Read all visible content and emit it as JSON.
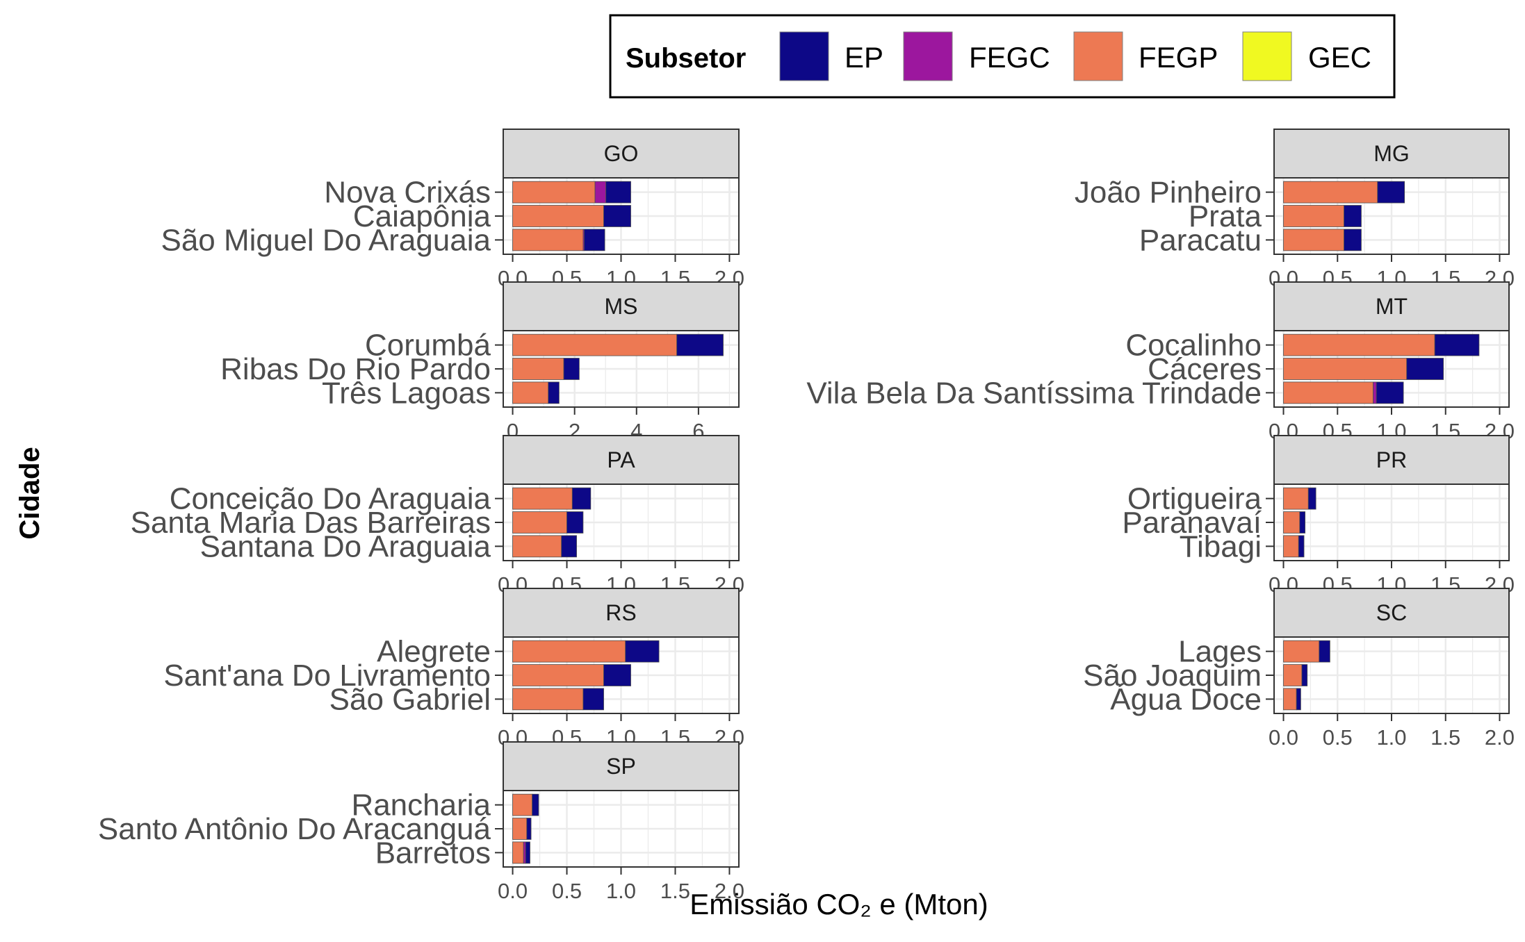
{
  "chart_data": {
    "type": "bar",
    "orientation": "horizontal",
    "stacked": true,
    "xlabel": "Emissião CO₂ e (Mton)",
    "ylabel": "Cidade",
    "legend": {
      "title": "Subsetor",
      "position": "top",
      "entries": [
        {
          "name": "EP",
          "color": "#0d0887"
        },
        {
          "name": "FEGC",
          "color": "#9c179e"
        },
        {
          "name": "FEGP",
          "color": "#ed7953"
        },
        {
          "name": "GEC",
          "color": "#f0f921"
        }
      ]
    },
    "grid": true,
    "facets": [
      {
        "label": "GO",
        "xlim": [
          0,
          2.0
        ],
        "ticks": [
          0,
          0.5,
          1,
          1.5,
          2
        ],
        "tick_labels": [
          "0.0",
          "0.5",
          "1.0",
          "1.5",
          "2.0"
        ],
        "categories": [
          "Nova Crixás",
          "Caiapônia",
          "São Miguel Do Araguaia"
        ],
        "series": [
          {
            "name": "FEGP",
            "values": [
              0.76,
              0.84,
              0.65
            ]
          },
          {
            "name": "FEGC",
            "values": [
              0.1,
              0.0,
              0.01
            ]
          },
          {
            "name": "EP",
            "values": [
              0.23,
              0.25,
              0.19
            ]
          },
          {
            "name": "GEC",
            "values": [
              0,
              0,
              0
            ]
          }
        ]
      },
      {
        "label": "MG",
        "xlim": [
          0,
          2.0
        ],
        "ticks": [
          0,
          0.5,
          1,
          1.5,
          2
        ],
        "tick_labels": [
          "0.0",
          "0.5",
          "1.0",
          "1.5",
          "2.0"
        ],
        "categories": [
          "João Pinheiro",
          "Prata",
          "Paracatu"
        ],
        "series": [
          {
            "name": "FEGP",
            "values": [
              0.87,
              0.56,
              0.56
            ]
          },
          {
            "name": "FEGC",
            "values": [
              0,
              0,
              0
            ]
          },
          {
            "name": "EP",
            "values": [
              0.25,
              0.16,
              0.16
            ]
          },
          {
            "name": "GEC",
            "values": [
              0,
              0,
              0
            ]
          }
        ]
      },
      {
        "label": "MS",
        "xlim": [
          0,
          7
        ],
        "ticks": [
          0,
          2,
          4,
          6
        ],
        "tick_labels": [
          "0",
          "2",
          "4",
          "6"
        ],
        "categories": [
          "Corumbá",
          "Ribas Do Rio Pardo",
          "Três Lagoas"
        ],
        "series": [
          {
            "name": "FEGP",
            "values": [
              5.3,
              1.65,
              1.15
            ]
          },
          {
            "name": "FEGC",
            "values": [
              0,
              0,
              0
            ]
          },
          {
            "name": "EP",
            "values": [
              1.5,
              0.5,
              0.35
            ]
          },
          {
            "name": "GEC",
            "values": [
              0,
              0,
              0
            ]
          }
        ]
      },
      {
        "label": "MT",
        "xlim": [
          0,
          2.0
        ],
        "ticks": [
          0,
          0.5,
          1,
          1.5,
          2
        ],
        "tick_labels": [
          "0.0",
          "0.5",
          "1.0",
          "1.5",
          "2.0"
        ],
        "categories": [
          "Cocalinho",
          "Cáceres",
          "Vila Bela Da Santíssima Trindade"
        ],
        "series": [
          {
            "name": "FEGP",
            "values": [
              1.4,
              1.14,
              0.83
            ]
          },
          {
            "name": "FEGC",
            "values": [
              0,
              0,
              0.03
            ]
          },
          {
            "name": "EP",
            "values": [
              0.41,
              0.34,
              0.25
            ]
          },
          {
            "name": "GEC",
            "values": [
              0,
              0,
              0
            ]
          }
        ]
      },
      {
        "label": "PA",
        "xlim": [
          0,
          2.0
        ],
        "ticks": [
          0,
          0.5,
          1,
          1.5,
          2
        ],
        "tick_labels": [
          "0.0",
          "0.5",
          "1.0",
          "1.5",
          "2.0"
        ],
        "categories": [
          "Conceição Do Araguaia",
          "Santa Maria Das Barreiras",
          "Santana Do Araguaia"
        ],
        "series": [
          {
            "name": "FEGP",
            "values": [
              0.55,
              0.5,
              0.45
            ]
          },
          {
            "name": "FEGC",
            "values": [
              0,
              0,
              0
            ]
          },
          {
            "name": "EP",
            "values": [
              0.17,
              0.15,
              0.14
            ]
          },
          {
            "name": "GEC",
            "values": [
              0,
              0,
              0
            ]
          }
        ]
      },
      {
        "label": "PR",
        "xlim": [
          0,
          2.0
        ],
        "ticks": [
          0,
          0.5,
          1,
          1.5,
          2
        ],
        "tick_labels": [
          "0.0",
          "0.5",
          "1.0",
          "1.5",
          "2.0"
        ],
        "categories": [
          "Ortigueira",
          "Paranavaí",
          "Tibagi"
        ],
        "series": [
          {
            "name": "FEGP",
            "values": [
              0.23,
              0.15,
              0.14
            ]
          },
          {
            "name": "FEGC",
            "values": [
              0,
              0,
              0
            ]
          },
          {
            "name": "EP",
            "values": [
              0.07,
              0.05,
              0.05
            ]
          },
          {
            "name": "GEC",
            "values": [
              0,
              0,
              0
            ]
          }
        ]
      },
      {
        "label": "RS",
        "xlim": [
          0,
          2.0
        ],
        "ticks": [
          0,
          0.5,
          1,
          1.5,
          2
        ],
        "tick_labels": [
          "0.0",
          "0.5",
          "1.0",
          "1.5",
          "2.0"
        ],
        "categories": [
          "Alegrete",
          "Sant'ana Do Livramento",
          "São Gabriel"
        ],
        "series": [
          {
            "name": "FEGP",
            "values": [
              1.04,
              0.84,
              0.65
            ]
          },
          {
            "name": "FEGC",
            "values": [
              0,
              0,
              0
            ]
          },
          {
            "name": "EP",
            "values": [
              0.31,
              0.25,
              0.19
            ]
          },
          {
            "name": "GEC",
            "values": [
              0,
              0,
              0
            ]
          }
        ]
      },
      {
        "label": "SC",
        "xlim": [
          0,
          2.0
        ],
        "ticks": [
          0,
          0.5,
          1,
          1.5,
          2
        ],
        "tick_labels": [
          "0.0",
          "0.5",
          "1.0",
          "1.5",
          "2.0"
        ],
        "categories": [
          "Lages",
          "São Joaquim",
          "Água Doce"
        ],
        "series": [
          {
            "name": "FEGP",
            "values": [
              0.33,
              0.17,
              0.12
            ]
          },
          {
            "name": "FEGC",
            "values": [
              0,
              0,
              0
            ]
          },
          {
            "name": "EP",
            "values": [
              0.1,
              0.05,
              0.04
            ]
          },
          {
            "name": "GEC",
            "values": [
              0,
              0,
              0
            ]
          }
        ]
      },
      {
        "label": "SP",
        "xlim": [
          0,
          2.0
        ],
        "ticks": [
          0,
          0.5,
          1,
          1.5,
          2
        ],
        "tick_labels": [
          "0.0",
          "0.5",
          "1.0",
          "1.5",
          "2.0"
        ],
        "categories": [
          "Rancharia",
          "Santo Antônio Do Aracanguá",
          "Barretos"
        ],
        "series": [
          {
            "name": "FEGP",
            "values": [
              0.18,
              0.13,
              0.1
            ]
          },
          {
            "name": "FEGC",
            "values": [
              0,
              0,
              0.02
            ]
          },
          {
            "name": "EP",
            "values": [
              0.06,
              0.04,
              0.04
            ]
          },
          {
            "name": "GEC",
            "values": [
              0,
              0,
              0
            ]
          }
        ]
      }
    ]
  }
}
